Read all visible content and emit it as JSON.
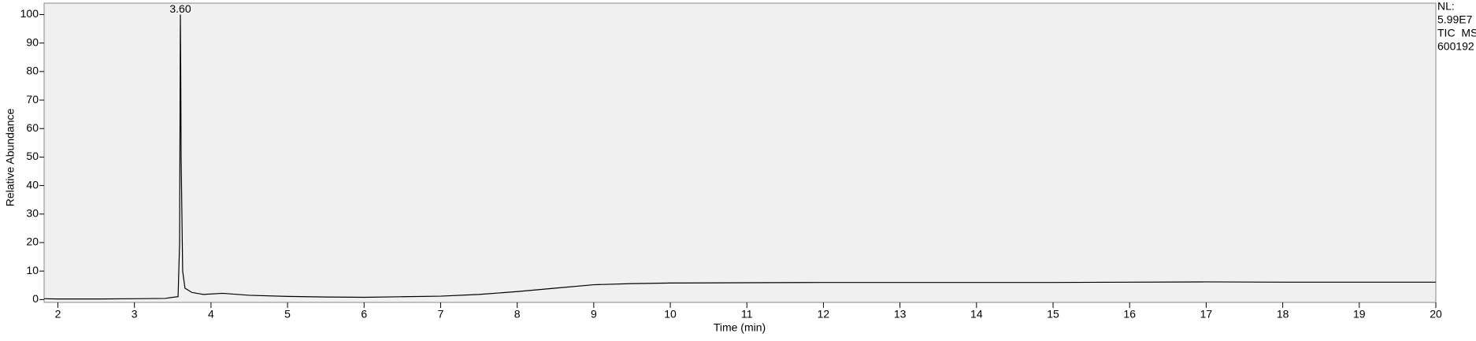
{
  "chart_data": {
    "type": "line",
    "xlabel": "Time (min)",
    "ylabel": "Relative Abundance",
    "x": [
      1.82,
      2.0,
      2.5,
      3.0,
      3.4,
      3.5,
      3.57,
      3.59,
      3.6,
      3.605,
      3.61,
      3.62,
      3.63,
      3.66,
      3.75,
      3.9,
      4.15,
      4.5,
      5.0,
      5.5,
      6.0,
      6.5,
      7.0,
      7.5,
      8.0,
      8.5,
      9.0,
      9.5,
      10.0,
      11.0,
      12.0,
      13.0,
      14.0,
      15.0,
      16.0,
      17.0,
      18.0,
      19.0,
      20.0
    ],
    "series": [
      {
        "color": "#000000",
        "values": [
          0.3,
          0.2,
          0.2,
          0.3,
          0.4,
          0.8,
          1.0,
          20,
          100,
          80,
          50,
          30,
          10,
          4,
          2.5,
          1.8,
          2.2,
          1.5,
          1.1,
          0.9,
          0.8,
          1.0,
          1.2,
          1.8,
          2.8,
          4.0,
          5.2,
          5.6,
          5.8,
          5.9,
          6.0,
          6.0,
          6.0,
          6.0,
          6.1,
          6.2,
          6.1,
          6.1,
          6.1
        ]
      }
    ],
    "peak_label": {
      "value": 3.6,
      "label": "3.60"
    },
    "annotations": [
      "NL:",
      "5.99E7",
      "TIC  MS",
      "600192"
    ],
    "xlim": [
      1.82,
      20
    ],
    "ylim": [
      -1,
      104
    ],
    "xticks": [
      2,
      3,
      4,
      5,
      6,
      7,
      8,
      9,
      10,
      11,
      12,
      13,
      14,
      15,
      16,
      17,
      18,
      19,
      20
    ],
    "yticks": [
      0,
      10,
      20,
      30,
      40,
      50,
      60,
      70,
      80,
      90,
      100
    ],
    "background": "#f0f0f0"
  }
}
